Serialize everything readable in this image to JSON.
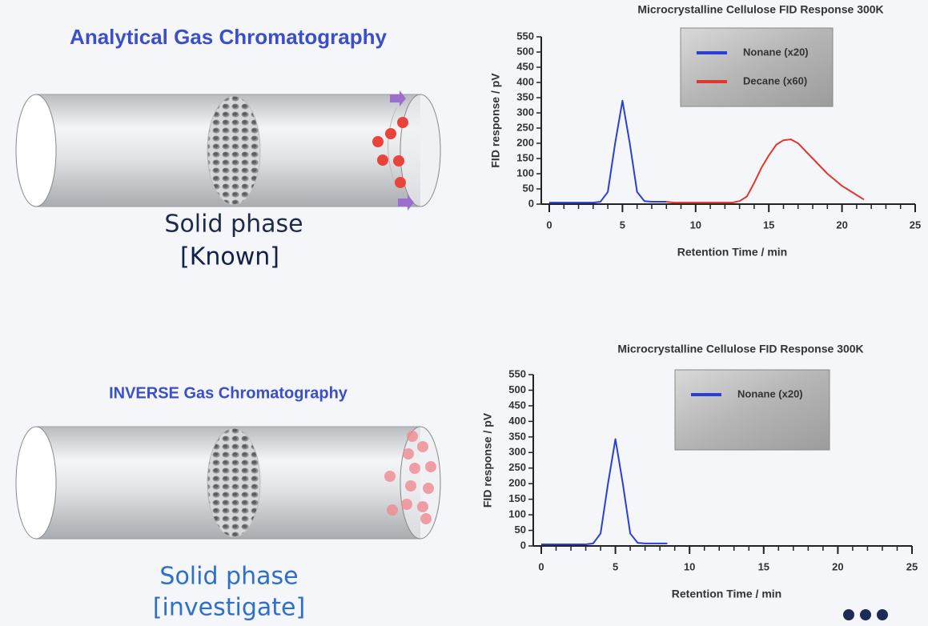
{
  "left": {
    "top": {
      "title": "Analytical Gas Chromatography",
      "label": "Solid phase",
      "sublabel": "[Known]"
    },
    "bottom": {
      "title": "INVERSE Gas Chromatography",
      "label": "Solid phase",
      "sublabel": "[investigate]"
    }
  },
  "chart_data": [
    {
      "type": "line",
      "title": "Microcrystalline Cellulose FID Response 300K",
      "xlabel": "Retention Time / min",
      "ylabel": "FID response / pV",
      "x": [
        0,
        0.5,
        1,
        1.5,
        2,
        2.5,
        3,
        3.5,
        4,
        4.5,
        5,
        5.5,
        6,
        6.5,
        7,
        7.5,
        8,
        8.5,
        9,
        9.5,
        10,
        10.5,
        11,
        11.5,
        12,
        12.5,
        13,
        13.5,
        14,
        14.5,
        15,
        15.5,
        16,
        16.5,
        17,
        17.5,
        18,
        18.5,
        19,
        19.5,
        20,
        20.5,
        21,
        21.5,
        22
      ],
      "series": [
        {
          "name": "Nonane (x20)",
          "color": "#2b3fd6",
          "values": [
            5,
            5,
            5,
            5,
            5,
            5,
            5,
            8,
            40,
            200,
            340,
            200,
            40,
            10,
            8,
            8,
            8,
            null,
            null,
            null,
            null,
            null,
            null,
            null,
            null,
            null,
            null,
            null,
            null,
            null,
            null,
            null,
            null,
            null,
            null,
            null,
            null,
            null,
            null,
            null,
            null,
            null,
            null,
            null,
            null
          ]
        },
        {
          "name": "Decane (x60)",
          "color": "#e0392b",
          "values": [
            null,
            null,
            null,
            null,
            null,
            null,
            null,
            null,
            null,
            null,
            null,
            null,
            null,
            null,
            null,
            null,
            8,
            5,
            5,
            5,
            5,
            5,
            5,
            5,
            5,
            5,
            10,
            25,
            70,
            120,
            160,
            195,
            210,
            213,
            200,
            175,
            150,
            125,
            100,
            80,
            60,
            45,
            30,
            15,
            null
          ]
        }
      ],
      "xlim": [
        0,
        25
      ],
      "xticks": [
        0,
        5,
        10,
        15,
        20,
        25
      ],
      "ylim": [
        0,
        550
      ],
      "yticks": [
        0,
        50,
        100,
        150,
        200,
        250,
        300,
        350,
        400,
        450,
        500,
        550
      ],
      "legend": "top-right"
    },
    {
      "type": "line",
      "title": "Microcrystalline Cellulose FID Response 300K",
      "xlabel": "Retention Time / min",
      "ylabel": "FID response / pV",
      "x": [
        0,
        0.5,
        1,
        1.5,
        2,
        2.5,
        3,
        3.5,
        4,
        4.5,
        5,
        5.5,
        6,
        6.5,
        7,
        7.5,
        8,
        8.5
      ],
      "series": [
        {
          "name": "Nonane (x20)",
          "color": "#2b3fd6",
          "values": [
            5,
            5,
            5,
            5,
            5,
            5,
            5,
            8,
            40,
            200,
            343,
            200,
            40,
            10,
            8,
            8,
            8,
            8
          ]
        }
      ],
      "xlim": [
        0,
        25
      ],
      "xticks": [
        0,
        5,
        10,
        15,
        20,
        25
      ],
      "ylim": [
        0,
        550
      ],
      "yticks": [
        0,
        50,
        100,
        150,
        200,
        250,
        300,
        350,
        400,
        450,
        500,
        550
      ],
      "legend": "top-right"
    }
  ]
}
